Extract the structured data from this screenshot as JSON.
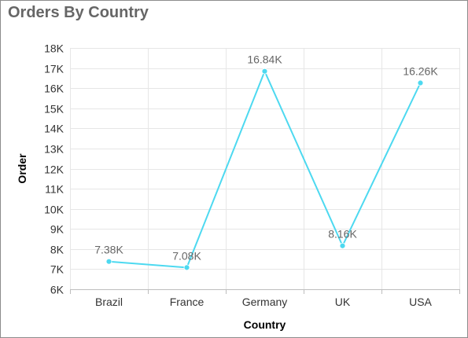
{
  "widget": {
    "title": "Orders By Country"
  },
  "colors": {
    "series": "#4dd9f0",
    "grid": "#e6e6e6",
    "title": "#666666"
  },
  "chart_data": {
    "type": "line",
    "title": "Orders By Country",
    "xlabel": "Country",
    "ylabel": "Order",
    "categories": [
      "Brazil",
      "France",
      "Germany",
      "UK",
      "USA"
    ],
    "values": [
      7380,
      7080,
      16840,
      8160,
      16260
    ],
    "data_labels": [
      "7.38K",
      "7.08K",
      "16.84K",
      "8.16K",
      "16.26K"
    ],
    "ylim": [
      6000,
      18000
    ],
    "y_ticks": [
      6000,
      7000,
      8000,
      9000,
      10000,
      11000,
      12000,
      13000,
      14000,
      15000,
      16000,
      17000,
      18000
    ],
    "y_tick_labels": [
      "6K",
      "7K",
      "8K",
      "9K",
      "10K",
      "11K",
      "12K",
      "13K",
      "14K",
      "15K",
      "16K",
      "17K",
      "18K"
    ],
    "grid": true,
    "legend": "none"
  }
}
